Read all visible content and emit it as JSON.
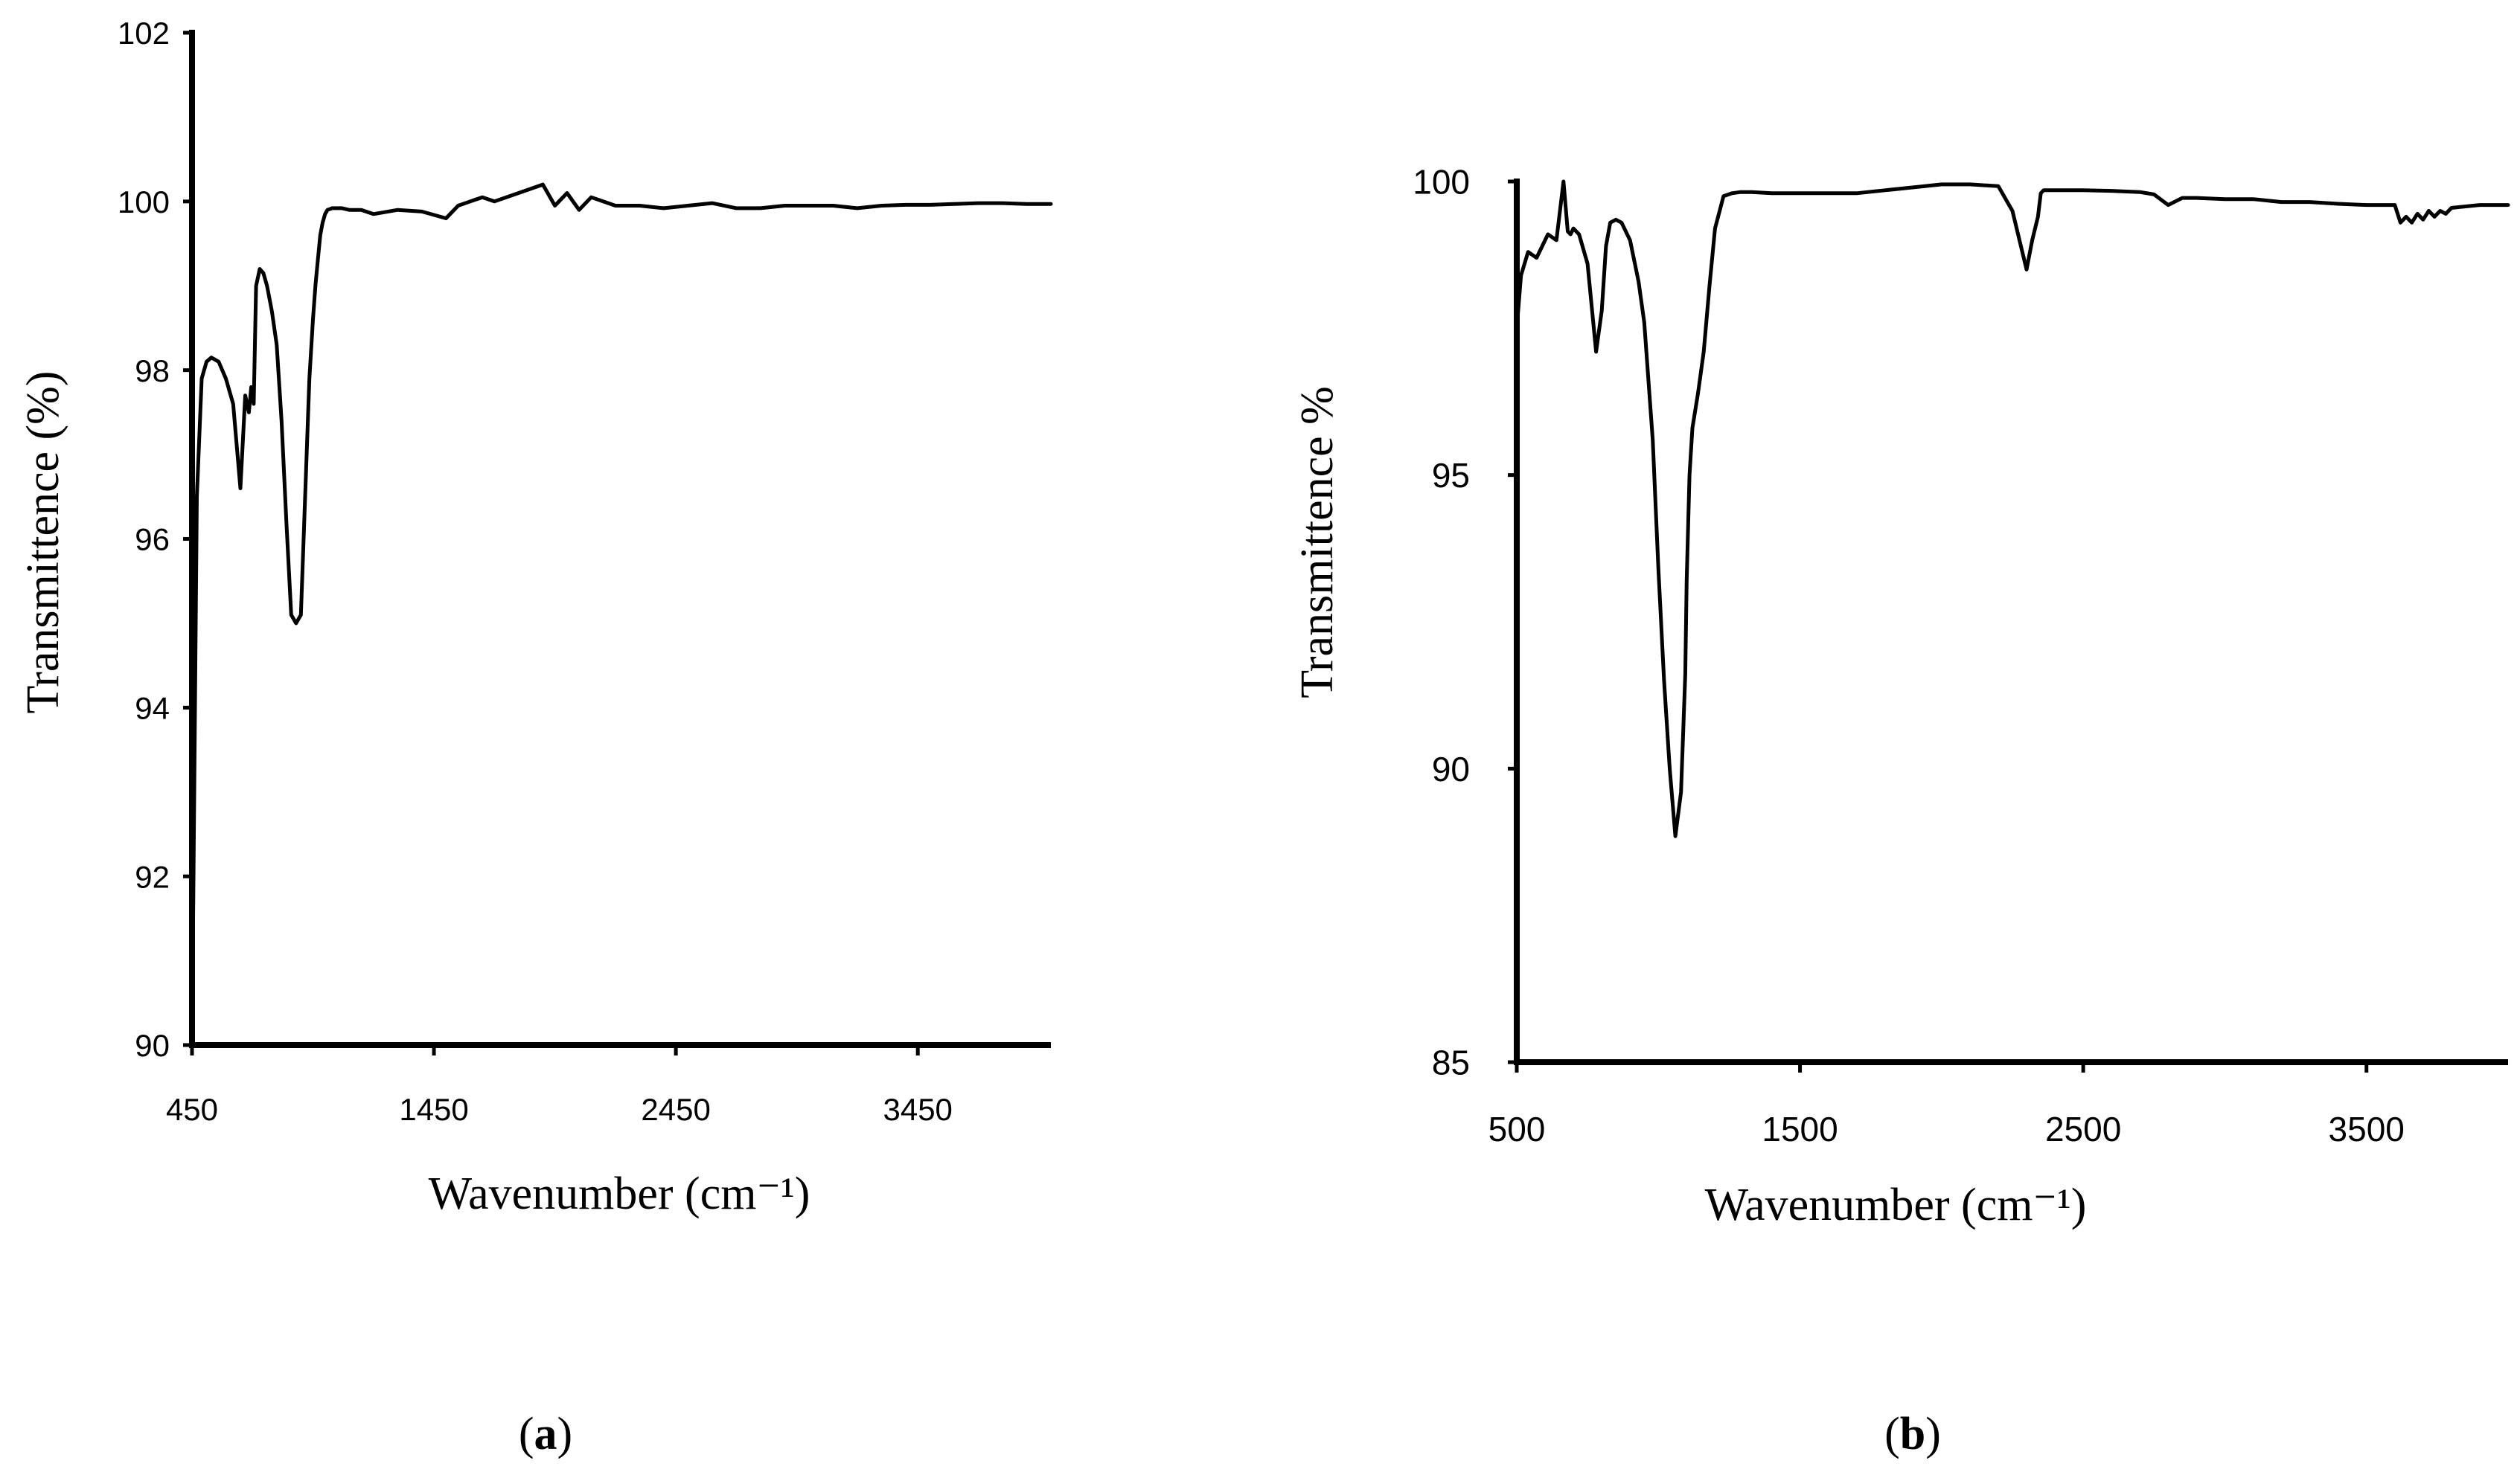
{
  "chart_data": [
    {
      "type": "line",
      "panel_label": "a",
      "xlabel": "Wavenumber (cm⁻¹)",
      "ylabel": "Transmittence (%)",
      "xlim": [
        450,
        4000
      ],
      "ylim": [
        90,
        102
      ],
      "xticks": [
        "450",
        "1450",
        "2450",
        "3450"
      ],
      "yticks": [
        "90",
        "92",
        "94",
        "96",
        "98",
        "100",
        "102"
      ],
      "grid": false,
      "series": [
        {
          "name": "spectrum",
          "x": [
            450,
            470,
            490,
            510,
            530,
            560,
            590,
            620,
            650,
            670,
            685,
            695,
            705,
            715,
            730,
            745,
            760,
            780,
            800,
            820,
            840,
            860,
            880,
            900,
            920,
            935,
            950,
            960,
            970,
            980,
            990,
            1000,
            1010,
            1030,
            1050,
            1070,
            1100,
            1150,
            1200,
            1300,
            1400,
            1500,
            1550,
            1600,
            1650,
            1700,
            1800,
            1900,
            1950,
            2000,
            2050,
            2100,
            2200,
            2300,
            2400,
            2500,
            2600,
            2700,
            2800,
            2900,
            3000,
            3100,
            3200,
            3300,
            3400,
            3500,
            3600,
            3700,
            3800,
            3900,
            4000
          ],
          "y": [
            90,
            96.5,
            97.9,
            98.1,
            98.15,
            98.1,
            97.9,
            97.6,
            96.6,
            97.7,
            97.5,
            97.8,
            97.6,
            99.0,
            99.2,
            99.15,
            99.0,
            98.7,
            98.3,
            97.4,
            96.2,
            95.1,
            95.0,
            95.1,
            96.7,
            97.9,
            98.6,
            99.0,
            99.3,
            99.6,
            99.75,
            99.85,
            99.9,
            99.92,
            99.92,
            99.92,
            99.9,
            99.9,
            99.85,
            99.9,
            99.88,
            99.8,
            99.95,
            100.0,
            100.05,
            100.0,
            100.1,
            100.2,
            99.95,
            100.1,
            99.9,
            100.05,
            99.95,
            99.95,
            99.92,
            99.95,
            99.98,
            99.92,
            99.92,
            99.95,
            99.95,
            99.95,
            99.92,
            99.95,
            99.96,
            99.96,
            99.97,
            99.98,
            99.98,
            99.97,
            99.97
          ]
        }
      ]
    },
    {
      "type": "line",
      "panel_label": "b",
      "xlabel": "Wavenumber (cm⁻¹)",
      "ylabel": "Transmittence %",
      "xlim": [
        500,
        4000
      ],
      "ylim": [
        85,
        100
      ],
      "xticks": [
        "500",
        "1500",
        "2500",
        "3500"
      ],
      "yticks": [
        "85",
        "90",
        "95",
        "100"
      ],
      "grid": false,
      "series": [
        {
          "name": "spectrum",
          "x": [
            500,
            515,
            540,
            570,
            610,
            640,
            665,
            680,
            690,
            700,
            720,
            750,
            780,
            800,
            815,
            830,
            850,
            870,
            900,
            930,
            950,
            980,
            1000,
            1020,
            1040,
            1060,
            1080,
            1095,
            1100,
            1110,
            1120,
            1140,
            1160,
            1180,
            1200,
            1230,
            1260,
            1290,
            1330,
            1400,
            1500,
            1600,
            1700,
            1800,
            1900,
            2000,
            2100,
            2200,
            2250,
            2300,
            2320,
            2340,
            2350,
            2360,
            2380,
            2400,
            2500,
            2600,
            2700,
            2750,
            2800,
            2850,
            2900,
            3000,
            3100,
            3200,
            3300,
            3400,
            3500,
            3600,
            3620,
            3640,
            3660,
            3680,
            3700,
            3720,
            3740,
            3760,
            3780,
            3800,
            3900,
            4000
          ],
          "y": [
            97.5,
            98.4,
            98.8,
            98.7,
            99.1,
            99.0,
            100.0,
            99.15,
            99.1,
            99.2,
            99.1,
            98.6,
            97.1,
            97.8,
            98.9,
            99.3,
            99.35,
            99.3,
            99.0,
            98.3,
            97.6,
            95.6,
            93.4,
            91.5,
            90.0,
            88.85,
            89.6,
            91.6,
            93.2,
            95.0,
            95.8,
            96.4,
            97.1,
            98.2,
            99.2,
            99.75,
            99.8,
            99.82,
            99.82,
            99.8,
            99.8,
            99.8,
            99.8,
            99.85,
            99.9,
            99.95,
            99.95,
            99.92,
            99.5,
            98.5,
            99.0,
            99.4,
            99.8,
            99.85,
            99.85,
            99.85,
            99.85,
            99.84,
            99.82,
            99.78,
            99.6,
            99.72,
            99.72,
            99.7,
            99.7,
            99.65,
            99.65,
            99.62,
            99.6,
            99.6,
            99.3,
            99.4,
            99.3,
            99.45,
            99.35,
            99.5,
            99.4,
            99.5,
            99.45,
            99.55,
            99.6,
            99.6
          ]
        }
      ]
    }
  ]
}
